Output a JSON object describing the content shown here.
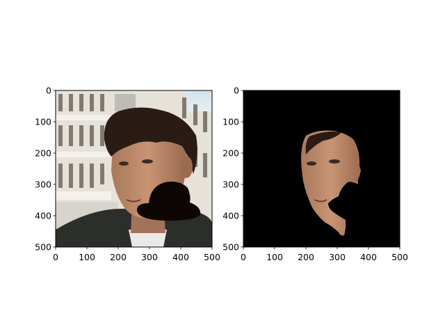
{
  "chart_data": [
    {
      "type": "image",
      "title": "",
      "xlabel": "",
      "ylabel": "",
      "xlim": [
        0,
        500
      ],
      "ylim": [
        500,
        0
      ],
      "y_axis_inverted": true,
      "xticks": [
        0,
        100,
        200,
        300,
        400,
        500
      ],
      "yticks": [
        0,
        100,
        200,
        300,
        400,
        500
      ],
      "content": "photo of a young man in front of a building, with a black hat-shaped occlusion over the lower right face",
      "occluder_color": "#0d0605"
    },
    {
      "type": "image",
      "title": "",
      "xlabel": "",
      "ylabel": "",
      "xlim": [
        0,
        500
      ],
      "ylim": [
        500,
        0
      ],
      "y_axis_inverted": true,
      "xticks": [
        0,
        100,
        200,
        300,
        400,
        500
      ],
      "yticks": [
        0,
        100,
        200,
        300,
        400,
        500
      ],
      "content": "segmented face region on black background, with the occluded area removed",
      "background_color": "#000000"
    }
  ],
  "tick_labels": [
    "0",
    "100",
    "200",
    "300",
    "400",
    "500"
  ]
}
